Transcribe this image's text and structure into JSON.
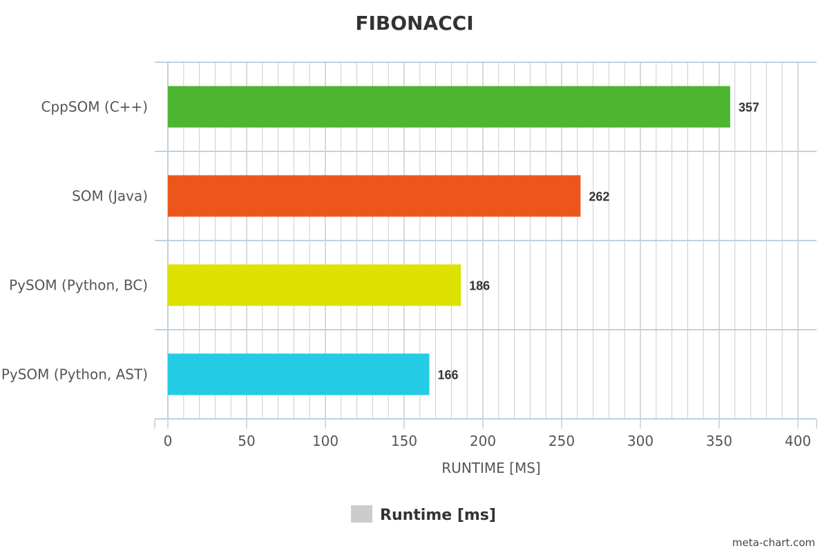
{
  "chart_data": {
    "type": "bar",
    "orientation": "horizontal",
    "title": "FIBONACCI",
    "categories": [
      "CppSOM (C++)",
      "SOM (Java)",
      "PySOM (Python, BC)",
      "PySOM (Python, AST)"
    ],
    "series": [
      {
        "name": "Runtime [ms]",
        "values": [
          357,
          262,
          186,
          166
        ],
        "colors": [
          "#4cb630",
          "#ec561b",
          "#dde100",
          "#24cbe5"
        ]
      }
    ],
    "data_labels": [
      "357",
      "262",
      "186",
      "166"
    ],
    "xlabel": "RUNTIME [MS]",
    "ylabel": "",
    "xlim": [
      0,
      400
    ],
    "x_ticks": [
      0,
      50,
      100,
      150,
      200,
      250,
      300,
      350,
      400
    ],
    "x_tick_labels": [
      "0",
      "50",
      "100",
      "150",
      "200",
      "250",
      "300",
      "350",
      "400"
    ],
    "grid": true,
    "legend": {
      "position": "bottom",
      "entries": [
        "Runtime [ms]"
      ],
      "swatch_color": "#cccccc"
    }
  },
  "credit": "meta-chart.com",
  "colors": {
    "grid": "#cccccc",
    "axis": "#c0d0e0",
    "text": "#555555"
  }
}
